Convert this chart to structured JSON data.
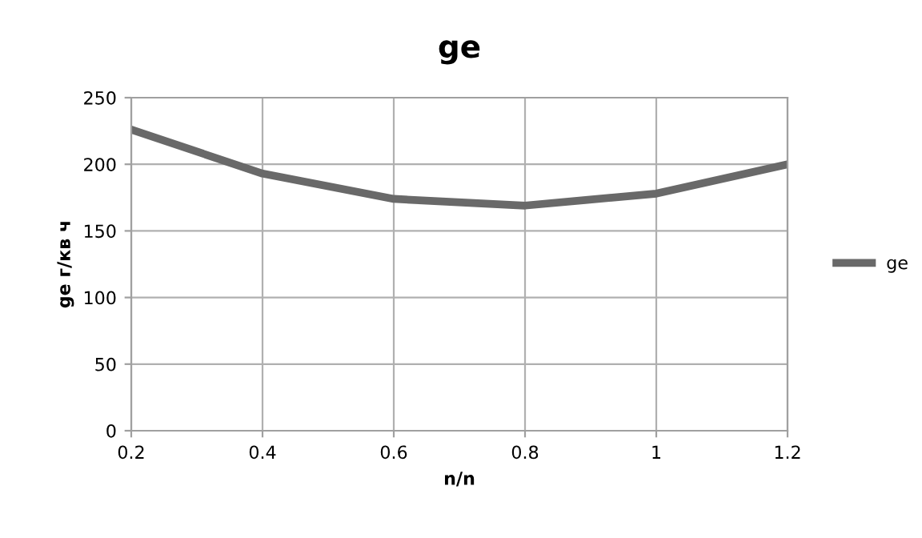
{
  "chart_data": {
    "type": "line",
    "title": "ge",
    "xlabel": "n/n",
    "ylabel": "ge г/кв ч",
    "x": [
      0.2,
      0.4,
      0.6,
      0.8,
      1,
      1.2
    ],
    "series": [
      {
        "name": "ge",
        "color": "#696969",
        "values": [
          226,
          193,
          174,
          169,
          178,
          200
        ]
      }
    ],
    "xlim": [
      0.2,
      1.2
    ],
    "xticks": [
      0.2,
      0.4,
      0.6,
      0.8,
      1,
      1.2
    ],
    "ylim": [
      0,
      250
    ],
    "yticks": [
      0,
      50,
      100,
      150,
      200,
      250
    ],
    "grid": true,
    "legend": "right",
    "marker": "none",
    "line_style": "solid"
  }
}
